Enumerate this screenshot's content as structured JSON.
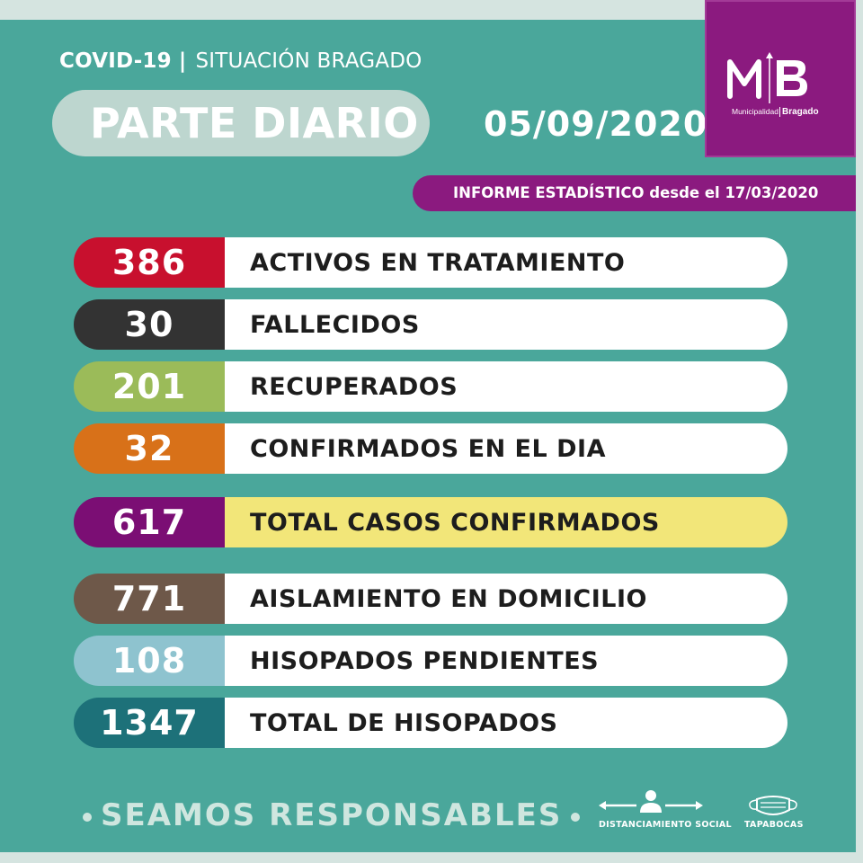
{
  "header": {
    "covid_label": "COVID-19",
    "separator": "|",
    "situation_label": "SITUACIÓN BRAGADO",
    "title": "PARTE DIARIO",
    "date": "05/09/2020"
  },
  "logo": {
    "sub_left": "Municipalidad",
    "sub_right": "Bragado"
  },
  "report": {
    "text": "INFORME ESTADÍSTICO desde el 17/03/2020"
  },
  "stats": [
    {
      "value": "386",
      "label": "ACTIVOS EN TRATAMIENTO",
      "color": "#c8102e",
      "label_bg": "#ffffff"
    },
    {
      "value": "30",
      "label": "FALLECIDOS",
      "color": "#333333",
      "label_bg": "#ffffff"
    },
    {
      "value": "201",
      "label": "RECUPERADOS",
      "color": "#9bbb59",
      "label_bg": "#ffffff"
    },
    {
      "value": "32",
      "label": "CONFIRMADOS EN EL DIA",
      "color": "#d87119",
      "label_bg": "#ffffff"
    },
    {
      "value": "617",
      "label": "TOTAL CASOS CONFIRMADOS",
      "color": "#7b0e74",
      "label_bg": "#f2e679"
    },
    {
      "value": "771",
      "label": "AISLAMIENTO EN DOMICILIO",
      "color": "#6e5849",
      "label_bg": "#ffffff"
    },
    {
      "value": "108",
      "label": "HISOPADOS PENDIENTES",
      "color": "#8ec3cf",
      "label_bg": "#ffffff"
    },
    {
      "value": "1347",
      "label": "TOTAL DE HISOPADOS",
      "color": "#1d7179",
      "label_bg": "#ffffff"
    }
  ],
  "footer": {
    "slogan": "SEAMOS RESPONSABLES",
    "distance_label": "DISTANCIAMIENTO SOCIAL",
    "mask_label": "TAPABOCAS"
  },
  "colors": {
    "background": "#4aa79b",
    "brand_purple": "#8b1a7f"
  }
}
